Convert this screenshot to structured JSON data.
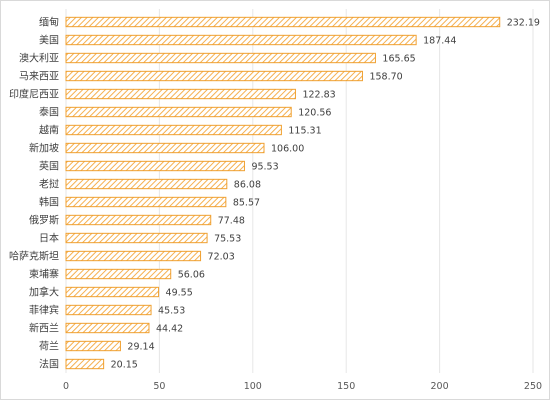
{
  "chart_data": {
    "type": "bar",
    "orientation": "horizontal",
    "categories": [
      "缅甸",
      "美国",
      "澳大利亚",
      "马来西亚",
      "印度尼西亚",
      "泰国",
      "越南",
      "新加坡",
      "英国",
      "老挝",
      "韩国",
      "俄罗斯",
      "日本",
      "哈萨克斯坦",
      "柬埔寨",
      "加拿大",
      "菲律宾",
      "新西兰",
      "荷兰",
      "法国"
    ],
    "values": [
      232.19,
      187.44,
      165.65,
      158.7,
      122.83,
      120.56,
      115.31,
      106.0,
      95.53,
      86.08,
      85.57,
      77.48,
      75.53,
      72.03,
      56.06,
      49.55,
      45.53,
      44.42,
      29.14,
      20.15
    ],
    "value_labels": [
      "232.19",
      "187.44",
      "165.65",
      "158.70",
      "122.83",
      "120.56",
      "115.31",
      "106.00",
      "95.53",
      "86.08",
      "85.57",
      "77.48",
      "75.53",
      "72.03",
      "56.06",
      "49.55",
      "45.53",
      "44.42",
      "29.14",
      "20.15"
    ],
    "xlim": [
      0,
      250
    ],
    "x_ticks": [
      0,
      50,
      100,
      150,
      200,
      250
    ],
    "x_tick_labels": [
      "0",
      "50",
      "100",
      "150",
      "200",
      "250"
    ],
    "title": "",
    "xlabel": "",
    "ylabel": "",
    "grid": true,
    "legend": "none",
    "bar_stroke_color": "#f0a030",
    "bar_hatch_color": "#f5b050"
  }
}
